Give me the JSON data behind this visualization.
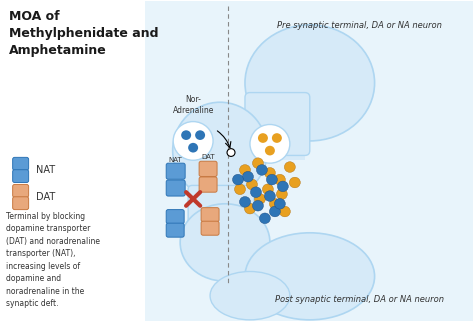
{
  "title": "MOA of\nMethylphenidate and\nAmphetamine",
  "background_color": "#e8f4fb",
  "white_bg": "#ffffff",
  "pre_synaptic_label": "Pre synaptic terminal, DA or NA neuron",
  "post_synaptic_label": "Post synaptic terminal, DA or NA neuron",
  "nor_adrenaline_label": "Nor-\nAdrenaline",
  "nat_label": "NAT",
  "dat_label": "DAT",
  "legend_nat_label": "NAT",
  "legend_dat_label": "DAT",
  "body_text": "Terminal by blocking\ndopamine transporter\n(DAT) and noradrenaline\ntransporter (NAT),\nincreasing levels of\ndopamine and\nnoradrenaline in the\nsynaptic deft.",
  "neuron_fill": "#d6eaf8",
  "neuron_edge": "#aed6f1",
  "nat_blue": "#5b9bd5",
  "nat_blue_dark": "#2e75b6",
  "dat_orange": "#e8a87c",
  "dat_orange_dark": "#c87941",
  "blocked_red": "#c0392b",
  "dopamine_color": "#e8a020",
  "noradrenaline_color": "#2e75b6",
  "vesicle_fill": "#f0e0c0",
  "vesicle_edge": "#c8a060",
  "dashed_color": "#888888",
  "text_color": "#333333",
  "title_color": "#1a1a1a"
}
